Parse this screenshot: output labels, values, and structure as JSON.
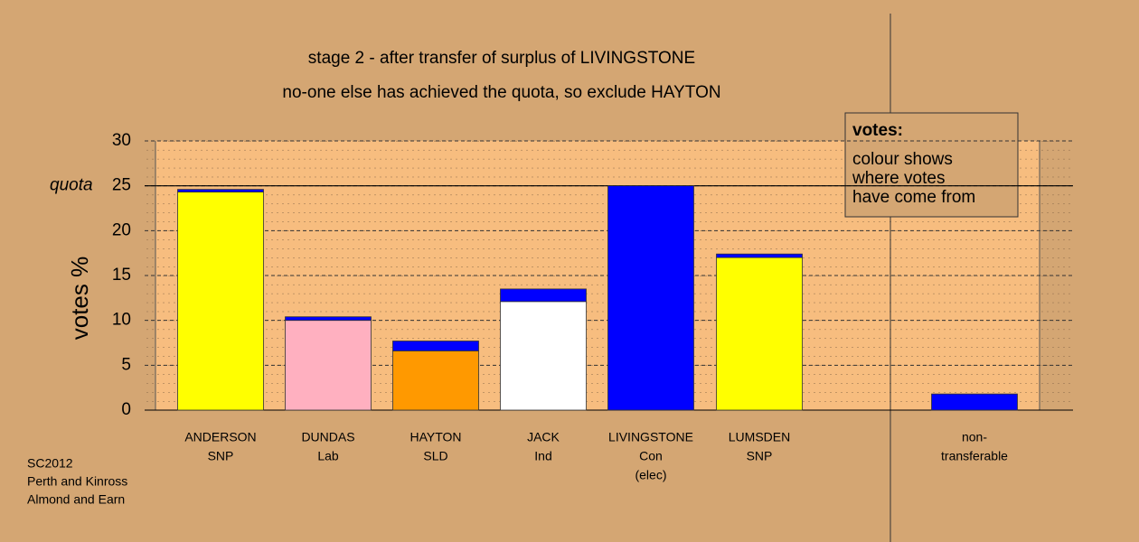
{
  "chart_data": {
    "type": "stacked_bar",
    "title": "stage 2 - after transfer of surplus of LIVINGSTONE",
    "subtitle": "no-one else has achieved the quota, so exclude HAYTON",
    "y_label": "votes %",
    "categories": [
      [
        "ANDERSON",
        "SNP"
      ],
      [
        "DUNDAS",
        "Lab"
      ],
      [
        "HAYTON",
        "SLD"
      ],
      [
        "JACK",
        "Ind"
      ],
      [
        "LIVINGSTONE",
        "Con",
        "(elec)"
      ],
      [
        "LUMSDEN",
        "SNP"
      ],
      [
        "non-",
        "transferable"
      ]
    ],
    "series": [
      {
        "colors": [
          "#ffff00",
          "#ffb0c0",
          "#ff9900",
          "#ffffff",
          "#0000ff",
          "#ffff00",
          null
        ],
        "values": [
          24.3,
          10.0,
          6.6,
          12.1,
          25,
          17.0,
          null
        ]
      },
      {
        "color": "#0000ff",
        "values": [
          0.3,
          0.4,
          1.1,
          1.4,
          null,
          0.4,
          1.8
        ]
      }
    ],
    "quota": {
      "label": "quota",
      "value": 25
    },
    "ylim": [
      0,
      30
    ],
    "yticks": [
      0,
      5,
      10,
      15,
      20,
      25,
      30
    ],
    "grid": true,
    "legend": {
      "title": "votes:",
      "lines": [
        "colour shows",
        "where votes",
        "have come from"
      ]
    },
    "footnote": [
      "SC2012",
      "Perth and Kinross",
      "Almond and Earn"
    ]
  }
}
